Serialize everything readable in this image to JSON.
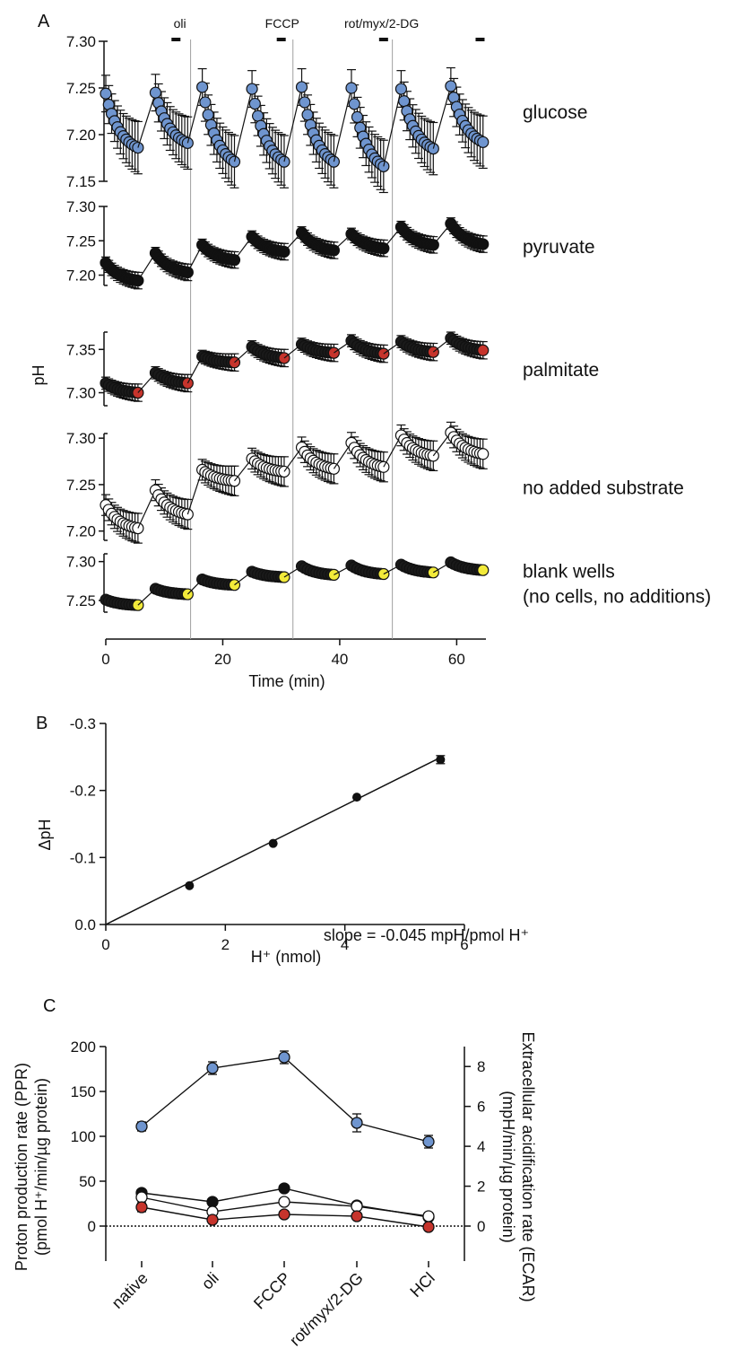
{
  "colors": {
    "glucose": "#6f95cf",
    "pyruvate": "#111111",
    "palmitate": "#c6342c",
    "none": "#ffffff",
    "blank": "#f2ea3a",
    "line": "#111111",
    "divider": "#a0a0a0"
  },
  "chart_data": [
    {
      "panel": "A",
      "type": "scatter",
      "xlabel": "Time (min)",
      "ylabel": "pH",
      "xlim": [
        0,
        65
      ],
      "x_ticks": [
        "0",
        "20",
        "40",
        "60"
      ],
      "injections": [
        {
          "label": "oli",
          "time": 14.5
        },
        {
          "label": "FCCP",
          "time": 32
        },
        {
          "label": "rot/myx/2-DG",
          "time": 49
        }
      ],
      "cycle_starts": [
        0,
        8.5,
        16.5,
        25,
        33.5,
        42,
        50.5,
        59
      ],
      "cycle_length": 5.5,
      "series": [
        {
          "name": "glucose",
          "color_key": "glucose",
          "ylim": [
            7.15,
            7.3
          ],
          "y_ticks": [
            "7.15",
            "7.20",
            "7.25",
            "7.30"
          ],
          "cycles": [
            [
              7.244,
              7.186
            ],
            [
              7.245,
              7.191
            ],
            [
              7.251,
              7.171
            ],
            [
              7.249,
              7.171
            ],
            [
              7.251,
              7.171
            ],
            [
              7.25,
              7.166
            ],
            [
              7.249,
              7.185
            ],
            [
              7.252,
              7.192
            ]
          ],
          "error": 0.028
        },
        {
          "name": "pyruvate",
          "color_key": "pyruvate",
          "ylim": [
            7.185,
            7.3
          ],
          "y_ticks": [
            "7.20",
            "7.25",
            "7.30"
          ],
          "cycles": [
            [
              7.218,
              7.192
            ],
            [
              7.232,
              7.204
            ],
            [
              7.244,
              7.222
            ],
            [
              7.256,
              7.234
            ],
            [
              7.262,
              7.236
            ],
            [
              7.26,
              7.239
            ],
            [
              7.27,
              7.244
            ],
            [
              7.275,
              7.245
            ]
          ],
          "error": 0.012
        },
        {
          "name": "palmitate",
          "color_key": "palmitate",
          "ylim": [
            7.285,
            7.37
          ],
          "y_ticks": [
            "7.30",
            "7.35"
          ],
          "cycles": [
            [
              7.311,
              7.3
            ],
            [
              7.323,
              7.311
            ],
            [
              7.342,
              7.335
            ],
            [
              7.353,
              7.34
            ],
            [
              7.356,
              7.346
            ],
            [
              7.36,
              7.345
            ],
            [
              7.359,
              7.347
            ],
            [
              7.363,
              7.349
            ]
          ],
          "error": 0.01
        },
        {
          "name": "no added substrate",
          "color_key": "none",
          "ylim": [
            7.19,
            7.305
          ],
          "y_ticks": [
            "7.20",
            "7.25",
            "7.30"
          ],
          "cycles": [
            [
              7.228,
              7.203
            ],
            [
              7.244,
              7.218
            ],
            [
              7.266,
              7.254
            ],
            [
              7.278,
              7.264
            ],
            [
              7.29,
              7.267
            ],
            [
              7.295,
              7.269
            ],
            [
              7.303,
              7.281
            ],
            [
              7.306,
              7.283
            ]
          ],
          "error": 0.016
        },
        {
          "name": "blank wells\n(no cells, no additions)",
          "color_key": "blank",
          "ylim": [
            7.235,
            7.31
          ],
          "y_ticks": [
            "7.25",
            "7.30"
          ],
          "cycles": [
            [
              7.251,
              7.244
            ],
            [
              7.265,
              7.258
            ],
            [
              7.277,
              7.27
            ],
            [
              7.287,
              7.28
            ],
            [
              7.294,
              7.283
            ],
            [
              7.295,
              7.284
            ],
            [
              7.296,
              7.286
            ],
            [
              7.299,
              7.289
            ]
          ],
          "error": 0.004
        }
      ]
    },
    {
      "panel": "B",
      "type": "scatter",
      "xlabel": "H⁺ (nmol)",
      "ylabel": "ΔpH",
      "xlim": [
        0,
        6
      ],
      "ylim": [
        0.0,
        -0.3
      ],
      "x_ticks": [
        "0",
        "2",
        "4",
        "6"
      ],
      "y_ticks": [
        "0.0",
        "-0.1",
        "-0.2",
        "-0.3"
      ],
      "points": [
        {
          "x": 1.4,
          "y": -0.058
        },
        {
          "x": 2.8,
          "y": -0.121
        },
        {
          "x": 4.2,
          "y": -0.19
        },
        {
          "x": 5.6,
          "y": -0.246
        }
      ],
      "errors": [
        0,
        0,
        0,
        0.006
      ],
      "fit": {
        "slope_per_nmol": -0.0445,
        "x_range": [
          0,
          5.6
        ]
      },
      "annotation": "slope = -0.045 mpH/pmol H⁺"
    },
    {
      "panel": "C",
      "type": "line",
      "categories": [
        "native",
        "oli",
        "FCCP",
        "rot/myx/2-DG",
        "HCl"
      ],
      "ylabel_left": "Proton production rate (PPR)\n(pmol H⁺/min/µg protein)",
      "ylabel_right": "Extracellular acidification rate (ECAR)\n(mpH/min/µg protein)",
      "ylim": [
        -10,
        200
      ],
      "y_ticks": [
        "0",
        "50",
        "100",
        "150",
        "200"
      ],
      "y2_ticks": [
        "0",
        "2",
        "4",
        "6",
        "8"
      ],
      "y2_per_left_unit": 0.045,
      "series": [
        {
          "color_key": "glucose",
          "values": [
            111,
            176,
            188,
            115,
            94
          ],
          "errors": [
            5,
            7,
            7,
            10,
            7
          ]
        },
        {
          "color_key": "pyruvate",
          "values": [
            37,
            27,
            42,
            23,
            10
          ],
          "errors": [
            2,
            2,
            2,
            2,
            2
          ]
        },
        {
          "color_key": "none",
          "values": [
            32,
            16,
            27,
            22,
            11
          ],
          "errors": [
            2,
            2,
            2,
            2,
            2
          ]
        },
        {
          "color_key": "palmitate",
          "values": [
            21,
            7,
            13,
            11,
            -1
          ],
          "errors": [
            5,
            2,
            2,
            2,
            1
          ]
        }
      ]
    }
  ]
}
